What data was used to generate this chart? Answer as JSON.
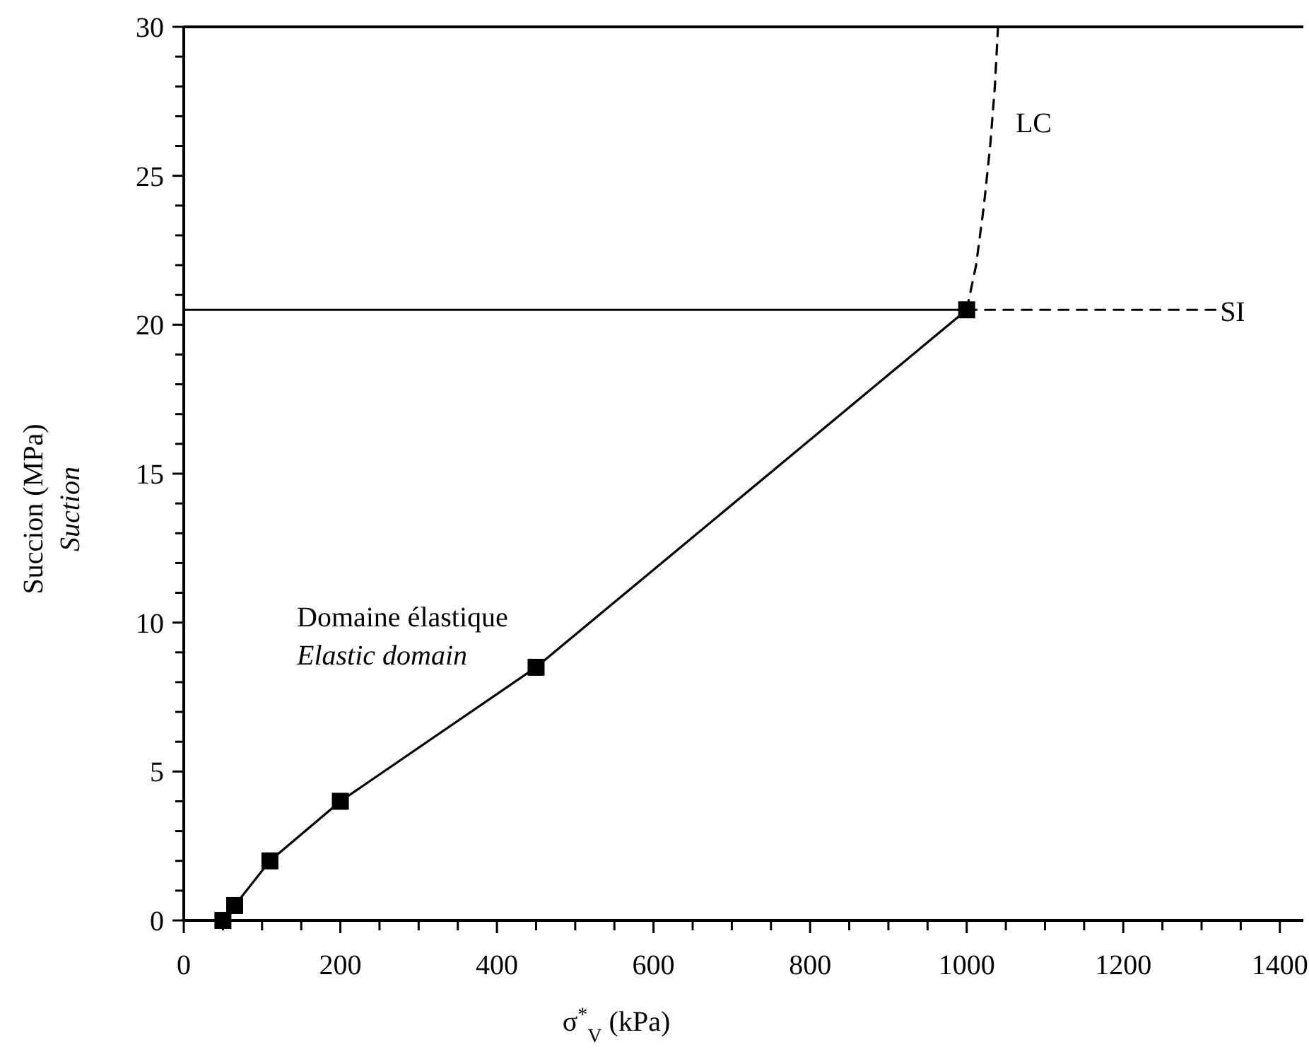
{
  "chart_data": {
    "type": "line",
    "xlabel": "σ$^{*}$$_{V}$ (kPa)",
    "ylabel": "Succion (MPa)\nSuction",
    "annotations": [
      "Domaine élastique\nElastic domain"
    ],
    "xlim": [
      0,
      1430
    ],
    "ylim": [
      0,
      30
    ],
    "xticks": [
      0,
      {
        "value": 50,
        "label": null
      },
      {
        "value": 100,
        "label": null
      },
      {
        "value": 150,
        "label": null
      },
      200,
      {
        "value": 250,
        "label": null
      },
      {
        "value": 300,
        "label": null
      },
      {
        "value": 350,
        "label": null
      },
      400,
      {
        "value": 450,
        "label": null
      },
      {
        "value": 500,
        "label": null
      },
      {
        "value": 550,
        "label": null
      },
      600,
      {
        "value": 650,
        "label": null
      },
      {
        "value": 700,
        "label": null
      },
      {
        "value": 750,
        "label": null
      },
      800,
      {
        "value": 850,
        "label": null
      },
      {
        "value": 900,
        "label": null
      },
      {
        "value": 950,
        "label": null
      },
      1000,
      {
        "value": 1050,
        "label": null
      },
      {
        "value": 1100,
        "label": null
      },
      {
        "value": 1150,
        "label": null
      },
      1200,
      {
        "value": 1250,
        "label": null
      },
      {
        "value": 1300,
        "label": null
      },
      {
        "value": 1350,
        "label": null
      },
      1400
    ],
    "yticks": [
      0,
      {
        "value": 1,
        "label": null
      },
      {
        "value": 2,
        "label": null
      },
      {
        "value": 3,
        "label": null
      },
      {
        "value": 4,
        "label": null
      },
      5,
      {
        "value": 6,
        "label": null
      },
      {
        "value": 7,
        "label": null
      },
      {
        "value": 8,
        "label": null
      },
      {
        "value": 9,
        "label": null
      },
      10,
      {
        "value": 11,
        "label": null
      },
      {
        "value": 12,
        "label": null
      },
      {
        "value": 13,
        "label": null
      },
      {
        "value": 14,
        "label": null
      },
      15,
      {
        "value": 16,
        "label": null
      },
      {
        "value": 17,
        "label": null
      },
      {
        "value": 18,
        "label": null
      },
      {
        "value": 19,
        "label": null
      },
      20,
      {
        "value": 21,
        "label": null
      },
      {
        "value": 22,
        "label": null
      },
      {
        "value": 23,
        "label": null
      },
      {
        "value": 24,
        "label": null
      },
      25,
      {
        "value": 26,
        "label": null
      },
      {
        "value": 27,
        "label": null
      },
      {
        "value": 28,
        "label": null
      },
      {
        "value": 29,
        "label": null
      },
      30
    ],
    "grid": false,
    "series": [
      {
        "color": "#000000",
        "marker": "square",
        "line_style": "solid",
        "x": [
          50,
          65,
          110,
          200,
          450,
          1000
        ],
        "values": [
          0,
          0.5,
          2,
          4,
          8.5,
          20.5
        ]
      },
      {
        "color": "#000000",
        "marker": "none",
        "line_style": "solid",
        "x": [
          0,
          1000
        ],
        "values": [
          20.5,
          20.5
        ]
      },
      {
        "name": "SI",
        "color": "#000000",
        "marker": "none",
        "line_style": "dashed",
        "x": [
          1000,
          1320
        ],
        "values": [
          20.5,
          20.5
        ]
      },
      {
        "name": "LC",
        "color": "#000000",
        "marker": "none",
        "line_style": "dashed",
        "x": [
          1000,
          1012,
          1022,
          1030,
          1036,
          1040
        ],
        "values": [
          20.5,
          22,
          24,
          26,
          28,
          30
        ]
      }
    ]
  }
}
